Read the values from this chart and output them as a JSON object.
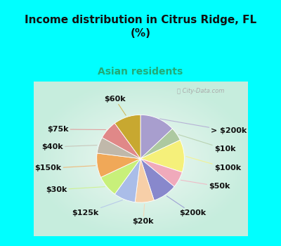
{
  "title": "Income distribution in Citrus Ridge, FL\n(%)",
  "subtitle": "Asian residents",
  "title_color": "#111111",
  "subtitle_color": "#22aa77",
  "bg_cyan": "#00ffff",
  "bg_chart_gradient_left": "#c8eedd",
  "bg_chart_center": "#f0f8f4",
  "labels": [
    "> $200k",
    "$10k",
    "$100k",
    "$50k",
    "$200k",
    "$20k",
    "$125k",
    "$30k",
    "$150k",
    "$40k",
    "$75k",
    "$60k"
  ],
  "values": [
    13,
    5,
    12,
    6,
    9,
    7,
    8,
    8,
    9,
    6,
    7,
    10
  ],
  "colors": [
    "#a89ece",
    "#adc9a0",
    "#f5f07a",
    "#f0aabb",
    "#8888cc",
    "#f7cfa8",
    "#aabde8",
    "#c8f07a",
    "#f0a858",
    "#c0b8aa",
    "#e08888",
    "#c8a830"
  ],
  "label_fontsize": 8,
  "title_fontsize": 11,
  "subtitle_fontsize": 10,
  "figsize": [
    4.0,
    3.5
  ],
  "dpi": 100,
  "label_positions": {
    "> $200k": [
      1.32,
      0.52,
      "left"
    ],
    "$10k": [
      1.38,
      0.18,
      "left"
    ],
    "$100k": [
      1.38,
      -0.18,
      "left"
    ],
    "$50k": [
      1.28,
      -0.52,
      "left"
    ],
    "$200k": [
      0.72,
      -1.02,
      "left"
    ],
    "$20k": [
      0.05,
      -1.18,
      "center"
    ],
    "$125k": [
      -0.78,
      -1.02,
      "right"
    ],
    "$30k": [
      -1.38,
      -0.58,
      "right"
    ],
    "$150k": [
      -1.48,
      -0.18,
      "right"
    ],
    "$40k": [
      -1.45,
      0.22,
      "right"
    ],
    "$75k": [
      -1.35,
      0.55,
      "right"
    ],
    "$60k": [
      -0.48,
      1.12,
      "center"
    ]
  }
}
